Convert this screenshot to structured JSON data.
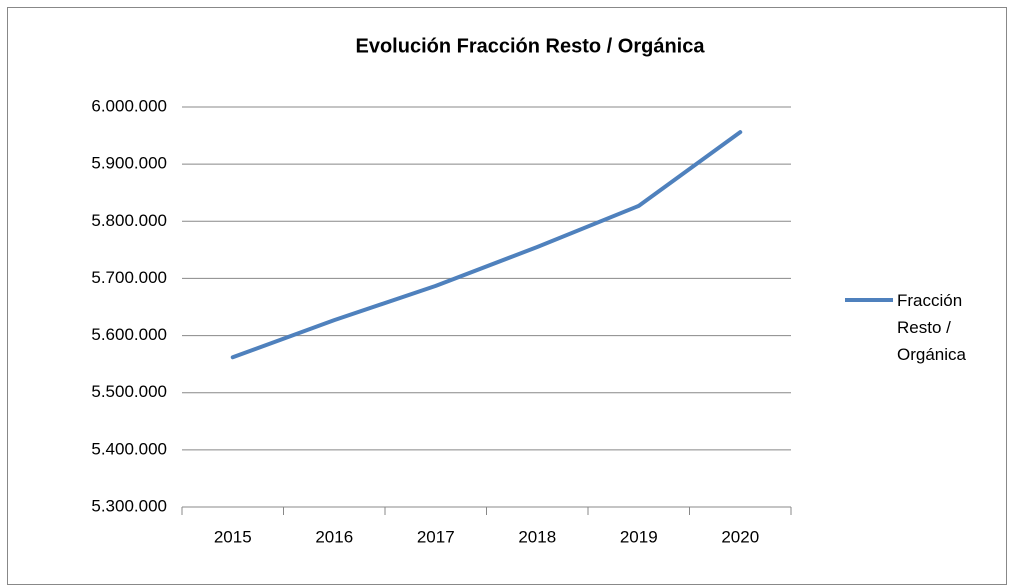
{
  "chart_data": {
    "type": "line",
    "title": "Evolución Fracción Resto / Orgánica",
    "categories": [
      "2015",
      "2016",
      "2017",
      "2018",
      "2019",
      "2020"
    ],
    "series": [
      {
        "name": "Fracción Resto / Orgánica",
        "color": "#4f81bd",
        "values": [
          5562000,
          5627000,
          5687000,
          5755000,
          5827000,
          5956000
        ]
      }
    ],
    "ylim": [
      5300000,
      6000000
    ],
    "yticks": [
      {
        "value": 5300000,
        "label": "5.300.000"
      },
      {
        "value": 5400000,
        "label": "5.400.000"
      },
      {
        "value": 5500000,
        "label": "5.500.000"
      },
      {
        "value": 5600000,
        "label": "5.600.000"
      },
      {
        "value": 5700000,
        "label": "5.700.000"
      },
      {
        "value": 5800000,
        "label": "5.800.000"
      },
      {
        "value": 5900000,
        "label": "5.900.000"
      },
      {
        "value": 6000000,
        "label": "6.000.000"
      }
    ],
    "grid": true,
    "legend": "right"
  }
}
